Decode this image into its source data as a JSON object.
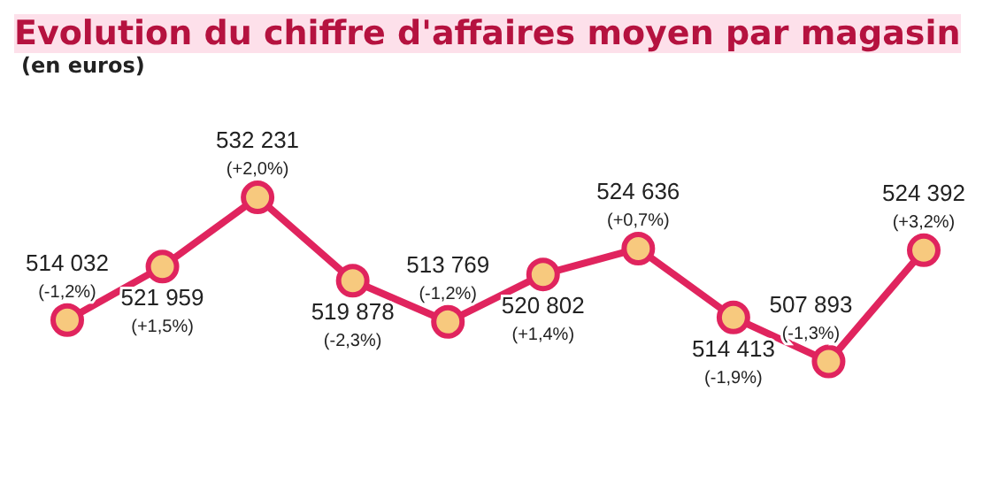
{
  "chart_data": {
    "type": "line",
    "title": "Evolution du chiffre d'affaires moyen par magasin",
    "subtitle": "(en euros)",
    "categories": [
      null,
      null,
      null,
      null,
      null,
      null,
      null,
      null,
      null,
      null
    ],
    "series": [
      {
        "color": "#e0245e",
        "values": [
          514032,
          521959,
          532231,
          519878,
          513769,
          520802,
          524636,
          514413,
          507893,
          524392
        ],
        "value_labels": [
          "514 032\n(-1,2%)",
          "521 959\n(+1,5%)",
          "532 231\n(+2,0%)",
          "519 878\n(-2,3%)",
          "513 769\n(-1,2%)",
          "520 802\n(+1,4%)",
          "524 636\n(+0,7%)",
          "514 413\n(-1,9%)",
          "507 893\n(-1,3%)",
          "524 392\n(+3,2%)"
        ]
      }
    ],
    "marker": "circle",
    "line_style": "solid",
    "grid": false,
    "legend": false
  }
}
